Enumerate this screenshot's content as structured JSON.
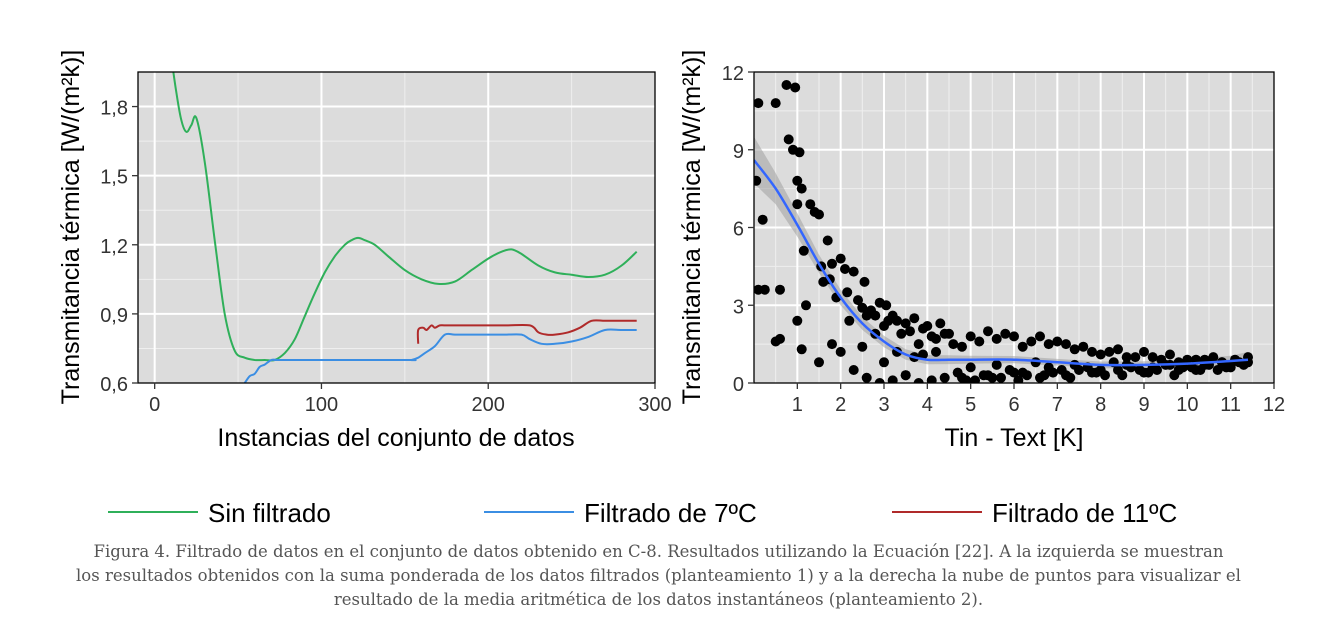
{
  "chart_data": [
    {
      "type": "line",
      "xlabel": "Instancias del conjunto de datos",
      "ylabel": "Transmitancia térmica [W/(m²k)]",
      "xlim": [
        -10,
        300
      ],
      "ylim": [
        0.6,
        1.95
      ],
      "xticks": [
        0,
        100,
        200,
        300
      ],
      "xtick_labels": [
        "0",
        "100",
        "200",
        "300"
      ],
      "yticks": [
        0.6,
        0.9,
        1.2,
        1.5,
        1.8
      ],
      "ytick_labels": [
        "0,6",
        "0,9",
        "1,2",
        "1,5",
        "1,8"
      ],
      "grid": true,
      "series": [
        {
          "name": "Sin filtrado",
          "color": "#2fb05a",
          "x": [
            11,
            13,
            16,
            19,
            22,
            25,
            30,
            36,
            42,
            48,
            54,
            60,
            66,
            72,
            78,
            84,
            90,
            96,
            102,
            108,
            114,
            118,
            122,
            126,
            132,
            140,
            150,
            160,
            170,
            180,
            190,
            200,
            208,
            214,
            220,
            230,
            240,
            250,
            260,
            270,
            280,
            289
          ],
          "y": [
            1.96,
            1.86,
            1.74,
            1.69,
            1.72,
            1.75,
            1.56,
            1.22,
            0.9,
            0.74,
            0.71,
            0.7,
            0.7,
            0.7,
            0.73,
            0.79,
            0.89,
            0.99,
            1.08,
            1.15,
            1.2,
            1.22,
            1.23,
            1.22,
            1.2,
            1.15,
            1.09,
            1.05,
            1.03,
            1.04,
            1.09,
            1.14,
            1.17,
            1.18,
            1.16,
            1.11,
            1.08,
            1.07,
            1.06,
            1.07,
            1.11,
            1.17
          ]
        },
        {
          "name": "Filtrado de 7ºC",
          "color": "#3b8ee3",
          "x": [
            54,
            57,
            60,
            63,
            66,
            70,
            74,
            78,
            150,
            154,
            158,
            162,
            168,
            174,
            180,
            190,
            200,
            210,
            220,
            225,
            232,
            240,
            250,
            260,
            270,
            280,
            289
          ],
          "y": [
            0.6,
            0.63,
            0.64,
            0.67,
            0.68,
            0.7,
            0.7,
            0.7,
            0.7,
            0.7,
            0.71,
            0.73,
            0.76,
            0.81,
            0.81,
            0.81,
            0.81,
            0.81,
            0.81,
            0.79,
            0.77,
            0.77,
            0.78,
            0.8,
            0.83,
            0.83,
            0.83
          ]
        },
        {
          "name": "Filtrado de 11ºC",
          "color": "#b02a2a",
          "x": [
            158,
            158,
            161,
            163,
            166,
            168,
            171,
            175,
            190,
            210,
            225,
            230,
            235,
            240,
            248,
            255,
            262,
            270,
            280,
            289
          ],
          "y": [
            0.77,
            0.83,
            0.84,
            0.83,
            0.85,
            0.84,
            0.85,
            0.85,
            0.85,
            0.85,
            0.85,
            0.82,
            0.81,
            0.81,
            0.82,
            0.84,
            0.87,
            0.87,
            0.87,
            0.87
          ]
        }
      ]
    },
    {
      "type": "scatter",
      "xlabel": "Tin - Text [K]",
      "ylabel": "Transmitancia térmica [W/(m²k)]",
      "xlim": [
        0,
        12
      ],
      "ylim": [
        0,
        12
      ],
      "xticks": [
        1,
        2,
        3,
        4,
        5,
        6,
        7,
        8,
        9,
        10,
        11,
        12
      ],
      "xtick_labels": [
        "1",
        "2",
        "3",
        "4",
        "5",
        "6",
        "7",
        "8",
        "9",
        "10",
        "11",
        "12"
      ],
      "yticks": [
        0,
        3,
        6,
        9,
        12
      ],
      "ytick_labels": [
        "0",
        "3",
        "6",
        "9",
        "12"
      ],
      "grid": true,
      "points_x": [
        0.05,
        0.1,
        0.2,
        0.25,
        0.5,
        0.6,
        0.75,
        0.8,
        0.9,
        0.95,
        1.0,
        1.0,
        1.05,
        1.1,
        1.15,
        1.2,
        1.3,
        1.4,
        1.5,
        1.55,
        1.6,
        1.7,
        1.75,
        1.8,
        1.9,
        2.0,
        2.1,
        2.15,
        2.2,
        2.3,
        2.4,
        2.5,
        2.55,
        2.6,
        2.7,
        2.8,
        2.9,
        3.0,
        3.05,
        3.1,
        3.2,
        3.3,
        3.4,
        3.5,
        3.6,
        3.7,
        3.8,
        3.9,
        4.0,
        4.1,
        4.2,
        4.3,
        4.4,
        4.5,
        0.1,
        0.5,
        0.6,
        1.0,
        1.1,
        1.5,
        1.8,
        2.0,
        2.3,
        2.5,
        2.8,
        3.0,
        3.3,
        3.5,
        3.7,
        3.9,
        4.2,
        4.6,
        4.8,
        5.0,
        5.2,
        5.4,
        5.6,
        5.8,
        6.0,
        6.2,
        6.4,
        6.6,
        6.8,
        7.0,
        7.2,
        7.4,
        7.6,
        7.8,
        8.0,
        8.2,
        8.4,
        8.6,
        8.8,
        9.0,
        9.2,
        9.4,
        9.6,
        9.8,
        10.0,
        10.2,
        10.4,
        10.6,
        10.8,
        11.0,
        11.2,
        11.4,
        4.7,
        5.0,
        5.3,
        5.6,
        5.9,
        6.2,
        6.5,
        6.8,
        7.1,
        7.4,
        7.7,
        8.0,
        8.3,
        8.6,
        8.9,
        9.2,
        9.5,
        9.8,
        10.1,
        10.4,
        10.7,
        11.0,
        11.3,
        2.6,
        2.9,
        3.2,
        3.5,
        3.8,
        4.1,
        4.4,
        4.9,
        5.5,
        6.1,
        6.7,
        7.3,
        7.9,
        8.5,
        9.1,
        9.7,
        10.3,
        10.9,
        4.8,
        5.1,
        5.4,
        5.7,
        6.0,
        6.3,
        6.6,
        6.9,
        7.2,
        7.5,
        7.8,
        8.1,
        8.4,
        8.7,
        9.0,
        9.3,
        9.6,
        9.9,
        10.2,
        10.5,
        10.8,
        11.1,
        11.4
      ],
      "points_y": [
        7.8,
        10.8,
        6.3,
        3.6,
        10.8,
        3.6,
        11.5,
        9.4,
        9.0,
        11.4,
        7.8,
        6.9,
        8.9,
        7.5,
        5.1,
        3.0,
        6.9,
        6.6,
        6.5,
        4.5,
        3.9,
        5.5,
        4.0,
        4.6,
        3.3,
        4.8,
        4.4,
        3.5,
        2.4,
        4.3,
        3.2,
        2.9,
        3.9,
        2.6,
        2.8,
        2.6,
        3.1,
        2.2,
        3.0,
        2.4,
        2.6,
        2.4,
        1.9,
        2.3,
        2.0,
        2.5,
        1.5,
        2.1,
        2.2,
        1.8,
        1.7,
        2.3,
        1.9,
        1.9,
        3.6,
        1.6,
        1.7,
        2.4,
        1.3,
        0.8,
        1.5,
        1.2,
        0.5,
        1.4,
        1.9,
        0.8,
        1.2,
        0.3,
        1.0,
        1.1,
        1.2,
        1.5,
        1.4,
        1.8,
        1.6,
        2.0,
        1.7,
        1.9,
        1.8,
        1.4,
        1.6,
        1.8,
        1.5,
        1.6,
        1.5,
        1.3,
        1.4,
        1.2,
        1.1,
        1.2,
        1.3,
        1.0,
        1.0,
        1.2,
        1.0,
        0.9,
        1.1,
        0.8,
        0.9,
        0.9,
        0.9,
        1.0,
        0.8,
        0.7,
        0.8,
        0.8,
        0.4,
        0.6,
        0.3,
        0.7,
        0.5,
        0.4,
        0.8,
        0.6,
        0.5,
        0.7,
        0.6,
        0.5,
        0.8,
        0.7,
        0.5,
        0.6,
        0.7,
        0.5,
        0.6,
        0.7,
        0.5,
        0.6,
        0.7,
        0.2,
        0.0,
        0.1,
        0.3,
        0.0,
        0.1,
        0.2,
        0.1,
        0.2,
        0.1,
        0.3,
        0.2,
        0.4,
        0.3,
        0.4,
        0.3,
        0.5,
        0.6,
        0.2,
        0.1,
        0.3,
        0.2,
        0.4,
        0.3,
        0.2,
        0.4,
        0.3,
        0.5,
        0.4,
        0.3,
        0.5,
        0.6,
        0.4,
        0.5,
        0.7,
        0.6,
        0.5,
        0.7,
        0.8,
        0.9,
        1.0
      ],
      "smooth_x": [
        0.0,
        0.5,
        1.0,
        1.5,
        2.0,
        2.5,
        3.0,
        3.5,
        4.0,
        4.5,
        5.0,
        6.0,
        7.0,
        8.0,
        9.0,
        10.0,
        11.0,
        11.4
      ],
      "smooth_y": [
        8.6,
        7.5,
        6.1,
        4.6,
        3.3,
        2.3,
        1.6,
        1.1,
        0.9,
        0.9,
        0.9,
        0.9,
        0.8,
        0.7,
        0.7,
        0.75,
        0.85,
        0.9
      ],
      "smooth_se": [
        0.9,
        0.6,
        0.45,
        0.35,
        0.3,
        0.25,
        0.22,
        0.2,
        0.18,
        0.17,
        0.15,
        0.14,
        0.13,
        0.13,
        0.14,
        0.16,
        0.2,
        0.3
      ],
      "point_color": "#000000",
      "smooth_color": "#3366ff"
    }
  ],
  "legend": {
    "placement": "bottom",
    "items": [
      {
        "label": "Sin filtrado",
        "color": "#2fb05a"
      },
      {
        "label": "Filtrado de 7ºC",
        "color": "#3b8ee3"
      },
      {
        "label": "Filtrado de 11ºC",
        "color": "#b02a2a"
      }
    ]
  },
  "caption": {
    "line1": "Figura 4. Filtrado de datos en el conjunto de datos obtenido en C-8. Resultados utilizando la Ecuación [22]. A la izquierda se muestran",
    "line2": "los resultados obtenidos con la suma ponderada de los datos filtrados (planteamiento 1) y a la derecha la nube de puntos para visualizar el",
    "line3": "resultado de la media aritmética de los datos instantáneos (planteamiento 2)."
  }
}
